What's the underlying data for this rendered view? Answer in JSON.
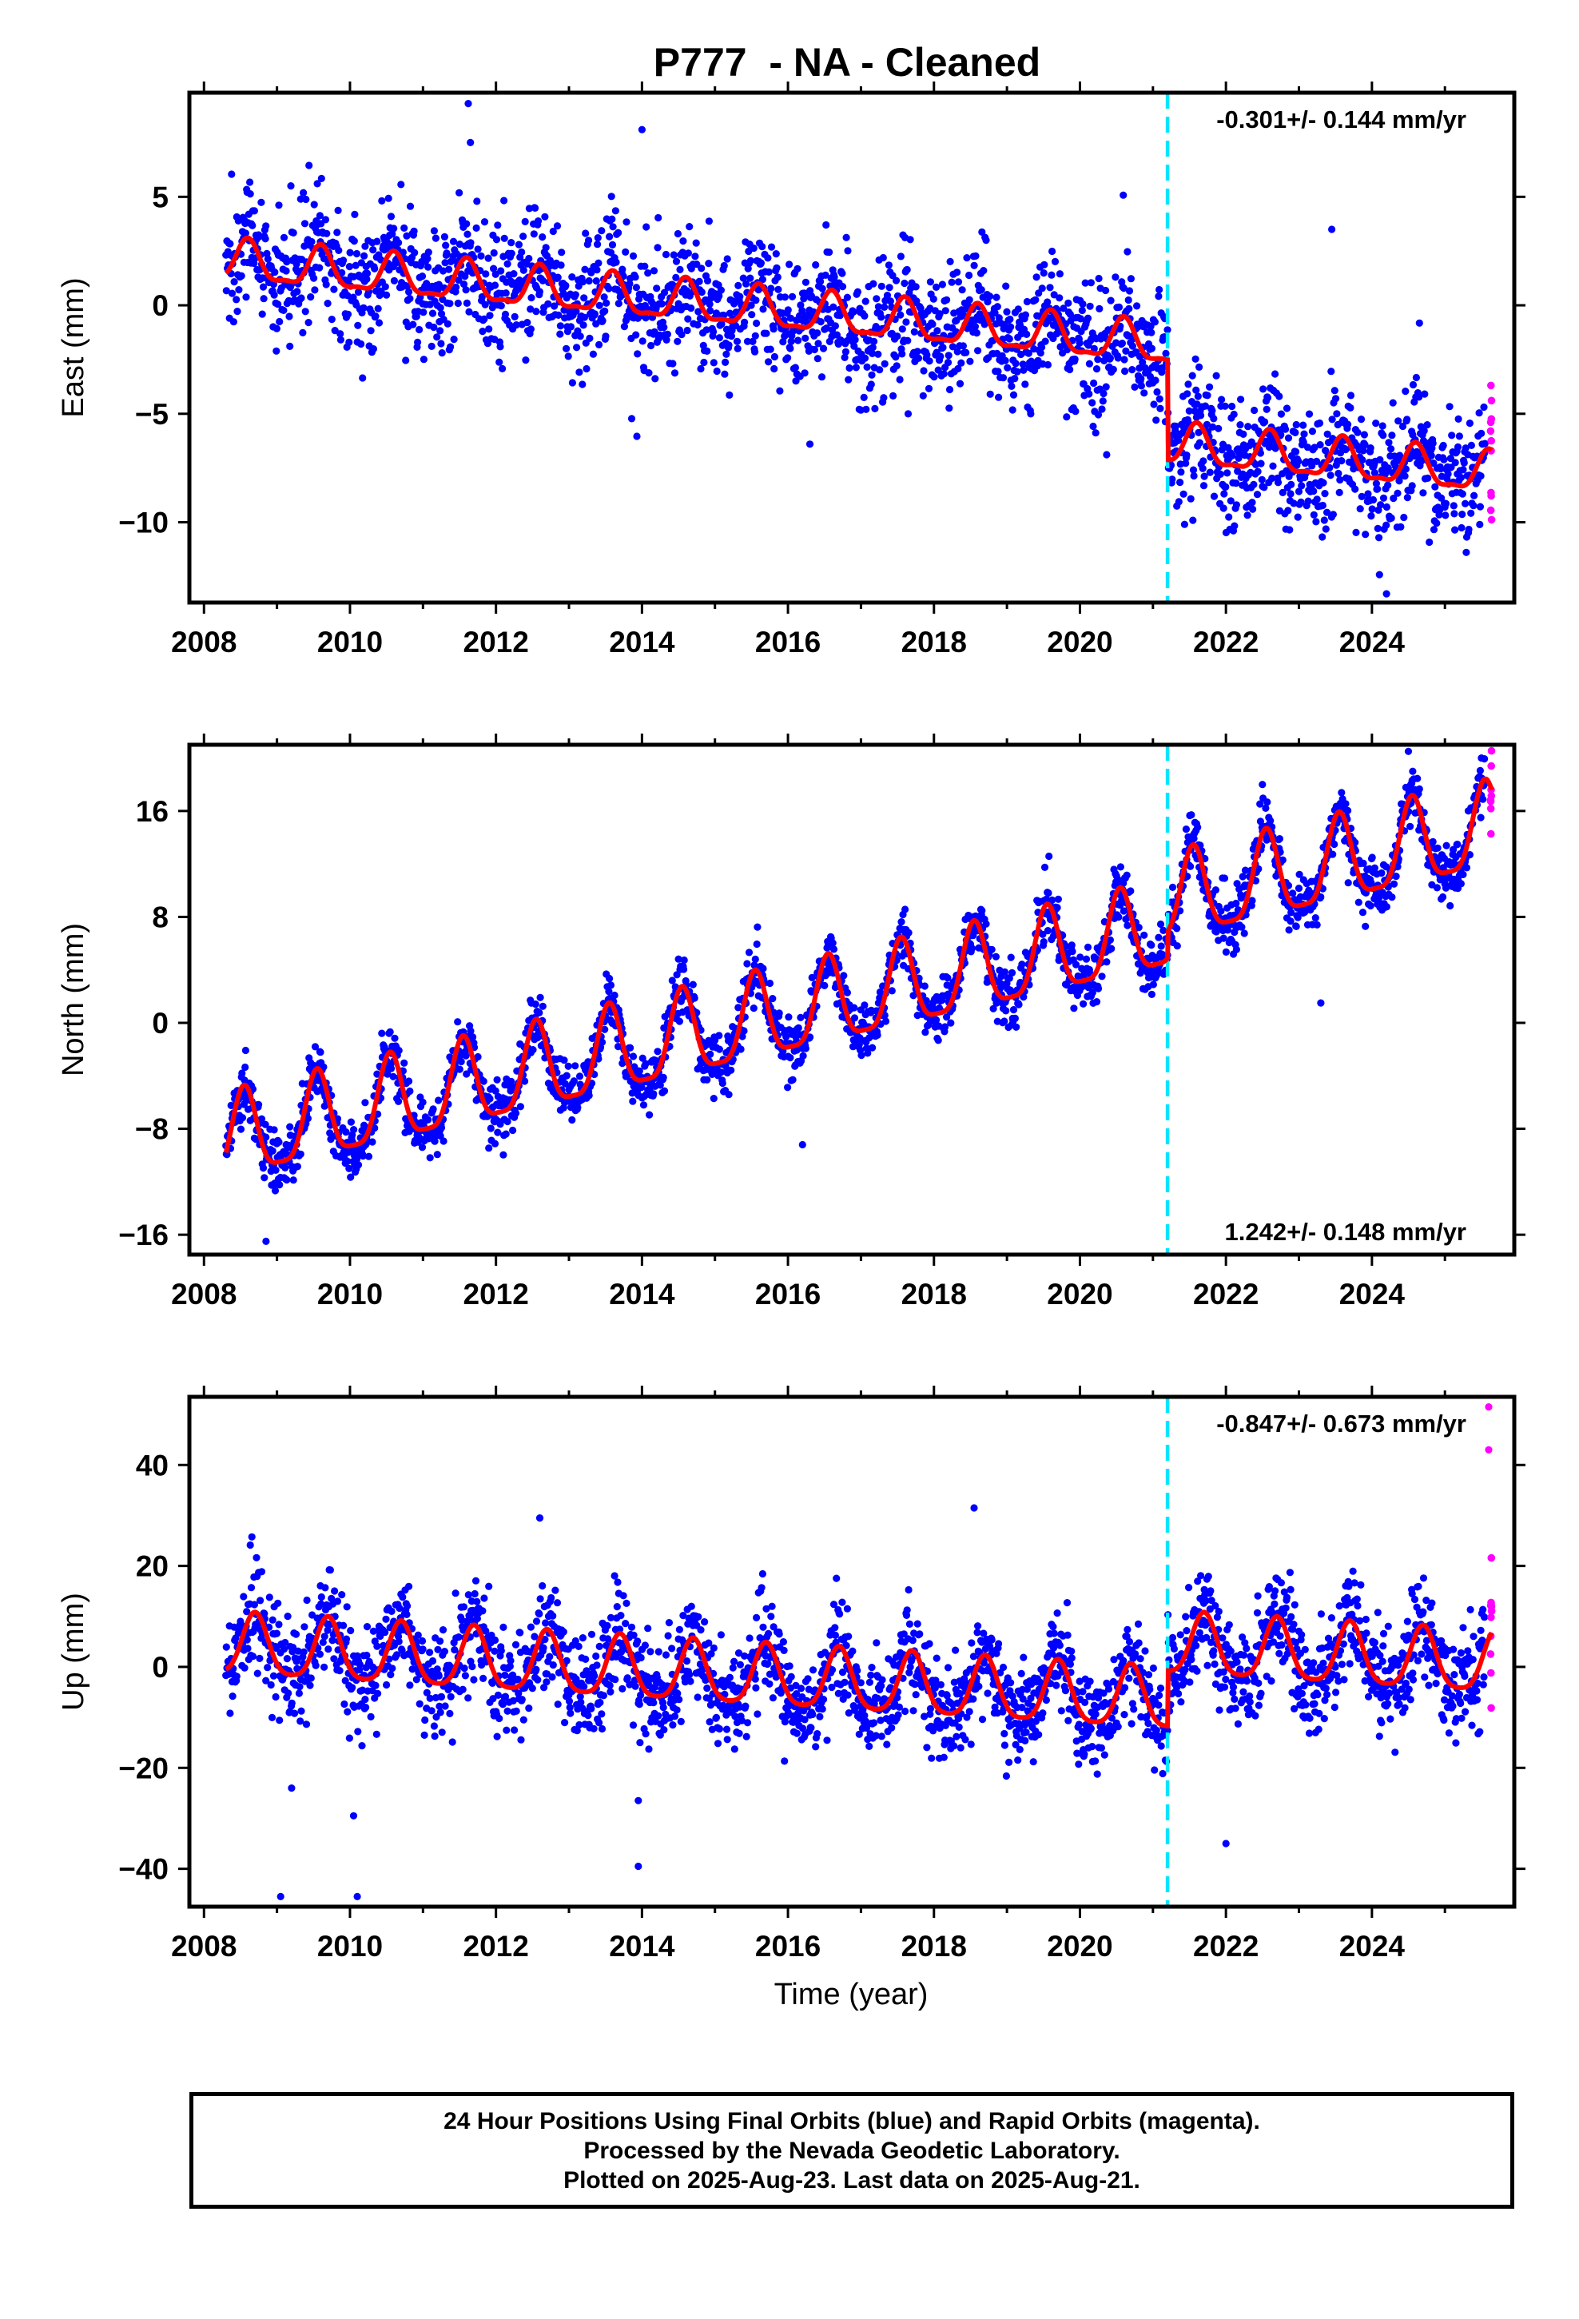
{
  "title": "P777  - NA - Cleaned",
  "xlabel": "Time (year)",
  "footer": {
    "line1": "24 Hour Positions Using Final Orbits (blue) and Rapid Orbits (magenta).",
    "line2": "Processed by the Nevada Geodetic Laboratory.",
    "line3": "Plotted on 2025-Aug-23. Last data on 2025-Aug-21."
  },
  "colors": {
    "final_orbits": "#0000ff",
    "rapid_orbits": "#ff00ff",
    "model": "#ff0000",
    "offset_line": "#00e5ff",
    "frame": "#000000"
  },
  "chart_data": [
    {
      "type": "scatter",
      "ylabel": "East (mm)",
      "rate_label": "-0.301+/- 0.144 mm/yr",
      "rate_position": "top-right",
      "xlim": [
        2007.8,
        2025.95
      ],
      "ylim": [
        -13.7,
        9.8
      ],
      "xticks": [
        2008,
        2010,
        2012,
        2014,
        2016,
        2018,
        2020,
        2022,
        2024
      ],
      "yticks": [
        5,
        0,
        -5,
        -10
      ],
      "data_start": 2008.3,
      "data_end": 2025.64,
      "rapid_start": 2025.55,
      "offset_epoch": 2021.2,
      "model": {
        "intercept": 2.0,
        "rate": -0.301,
        "offset_at_epoch": -4.6,
        "annual_amplitude": 0.9,
        "annual_peak": 0.6,
        "semiannual_amplitude": 0.3,
        "scatter_sd": 1.5
      },
      "series": [
        {
          "name": "Final Orbits",
          "color": "#0000ff"
        },
        {
          "name": "Rapid Orbits",
          "color": "#ff00ff"
        },
        {
          "name": "Model",
          "color": "#ff0000"
        }
      ],
      "outliers": [
        [
          2011.62,
          9.3
        ],
        [
          2011.65,
          7.5
        ],
        [
          2014.0,
          8.1
        ],
        [
          2023.45,
          3.5
        ],
        [
          2024.2,
          -13.3
        ],
        [
          2016.3,
          -6.4
        ]
      ]
    },
    {
      "type": "scatter",
      "ylabel": "North (mm)",
      "rate_label": "1.242+/- 0.148 mm/yr",
      "rate_position": "bottom-right",
      "xlim": [
        2007.8,
        2025.95
      ],
      "ylim": [
        -17.5,
        21
      ],
      "xticks": [
        2008,
        2010,
        2012,
        2014,
        2016,
        2018,
        2020,
        2022,
        2024
      ],
      "yticks": [
        16,
        8,
        0,
        -8,
        -16
      ],
      "data_start": 2008.3,
      "data_end": 2025.64,
      "rapid_start": 2025.55,
      "offset_epoch": 2021.2,
      "model": {
        "intercept": -9.0,
        "rate": 1.242,
        "offset_at_epoch": 2.0,
        "annual_amplitude": 3.2,
        "annual_peak": 0.55,
        "semiannual_amplitude": 0.8,
        "scatter_sd": 1.1
      },
      "series": [
        {
          "name": "Final Orbits",
          "color": "#0000ff"
        },
        {
          "name": "Rapid Orbits",
          "color": "#ff00ff"
        },
        {
          "name": "Model",
          "color": "#ff0000"
        }
      ],
      "outliers": [
        [
          2008.85,
          -16.5
        ],
        [
          2025.5,
          20.0
        ],
        [
          2024.5,
          20.5
        ],
        [
          2022.5,
          18.0
        ],
        [
          2023.3,
          1.5
        ],
        [
          2016.2,
          -9.2
        ]
      ]
    },
    {
      "type": "scatter",
      "ylabel": "Up (mm)",
      "rate_label": "-0.847+/- 0.673 mm/yr",
      "rate_position": "top-right",
      "xlim": [
        2007.8,
        2025.95
      ],
      "ylim": [
        -47.5,
        53.5
      ],
      "xticks": [
        2008,
        2010,
        2012,
        2014,
        2016,
        2018,
        2020,
        2022,
        2024
      ],
      "yticks": [
        40,
        20,
        0,
        -20,
        -40
      ],
      "data_start": 2008.3,
      "data_end": 2025.64,
      "rapid_start": 2025.55,
      "offset_epoch": 2021.2,
      "model": {
        "intercept": 4.0,
        "rate": -0.847,
        "offset_at_epoch": 11.0,
        "annual_amplitude": 6.0,
        "annual_peak": 0.7,
        "semiannual_amplitude": 1.2,
        "scatter_sd": 5.0
      },
      "series": [
        {
          "name": "Final Orbits",
          "color": "#0000ff"
        },
        {
          "name": "Rapid Orbits",
          "color": "#ff00ff"
        },
        {
          "name": "Model",
          "color": "#ff0000"
        }
      ],
      "outliers": [
        [
          2009.05,
          -45.5
        ],
        [
          2010.1,
          -45.5
        ],
        [
          2013.95,
          -39.5
        ],
        [
          2010.05,
          -29.5
        ],
        [
          2013.95,
          -26.5
        ],
        [
          2018.55,
          31.5
        ],
        [
          2012.6,
          29.5
        ],
        [
          2022.0,
          -35.0
        ],
        [
          2009.2,
          -24.0
        ],
        [
          2025.6,
          51.5
        ],
        [
          2025.6,
          43.0
        ]
      ]
    }
  ]
}
